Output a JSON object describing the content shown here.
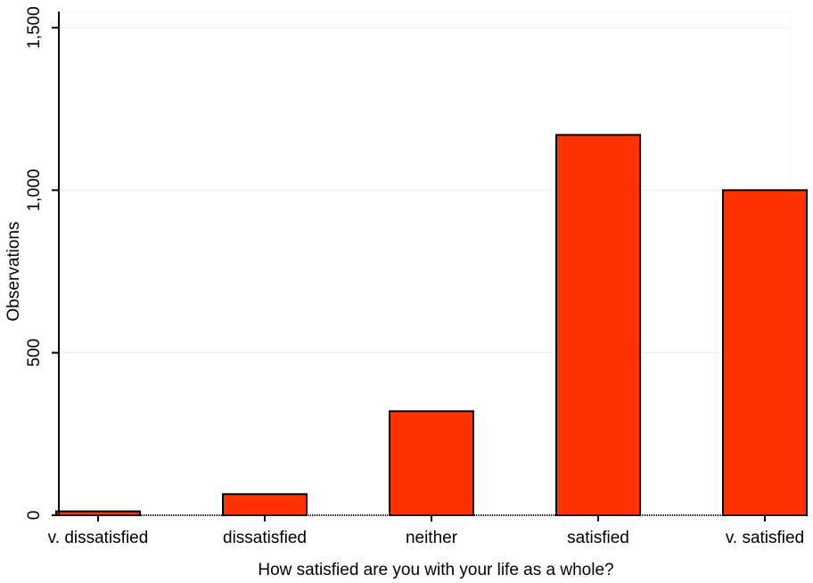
{
  "chart_data": {
    "type": "bar",
    "title": "",
    "xlabel": "How satisfied are you with your life as a whole?",
    "ylabel": "Observations",
    "categories": [
      "v. dissatisfied",
      "dissatisfied",
      "neither",
      "satisfied",
      "v. satisfied"
    ],
    "values": [
      12,
      65,
      320,
      1170,
      1000
    ],
    "ylim": [
      0,
      1500
    ],
    "yticks": [
      0,
      500,
      1000,
      1500
    ],
    "ytick_labels": [
      "0",
      "500",
      "1,000",
      "1,500"
    ],
    "grid": true,
    "bar_color": "#ff3300"
  }
}
